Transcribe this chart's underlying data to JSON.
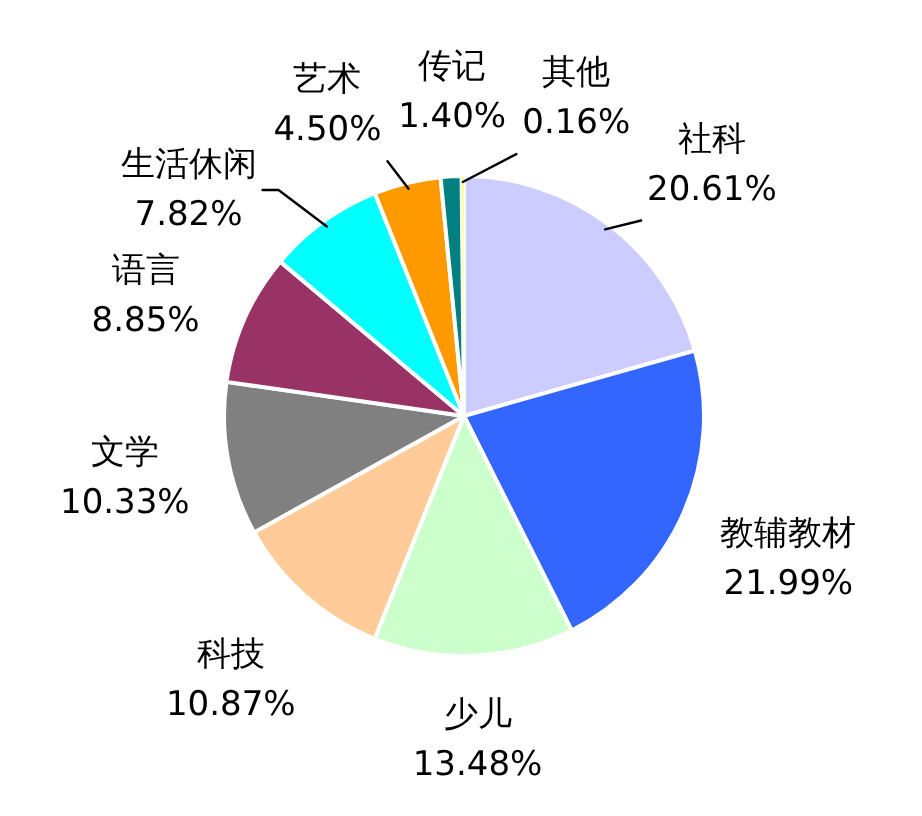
{
  "chart_data": {
    "type": "pie",
    "categories": [
      "社科",
      "教辅教材",
      "少儿",
      "科技",
      "文学",
      "语言",
      "生活休闲",
      "艺术",
      "传记",
      "其他"
    ],
    "values": [
      20.61,
      21.99,
      13.48,
      10.87,
      10.33,
      8.85,
      7.82,
      4.5,
      1.4,
      0.16
    ],
    "value_labels": [
      "20.61%",
      "21.99%",
      "13.48%",
      "10.87%",
      "10.33%",
      "8.85%",
      "7.82%",
      "4.50%",
      "1.40%",
      "0.16%"
    ],
    "colors": [
      "#ccccff",
      "#3366ff",
      "#ccffcc",
      "#ffcc99",
      "#808080",
      "#993366",
      "#00ffff",
      "#ff9900",
      "#008080",
      "#ffff66"
    ]
  }
}
